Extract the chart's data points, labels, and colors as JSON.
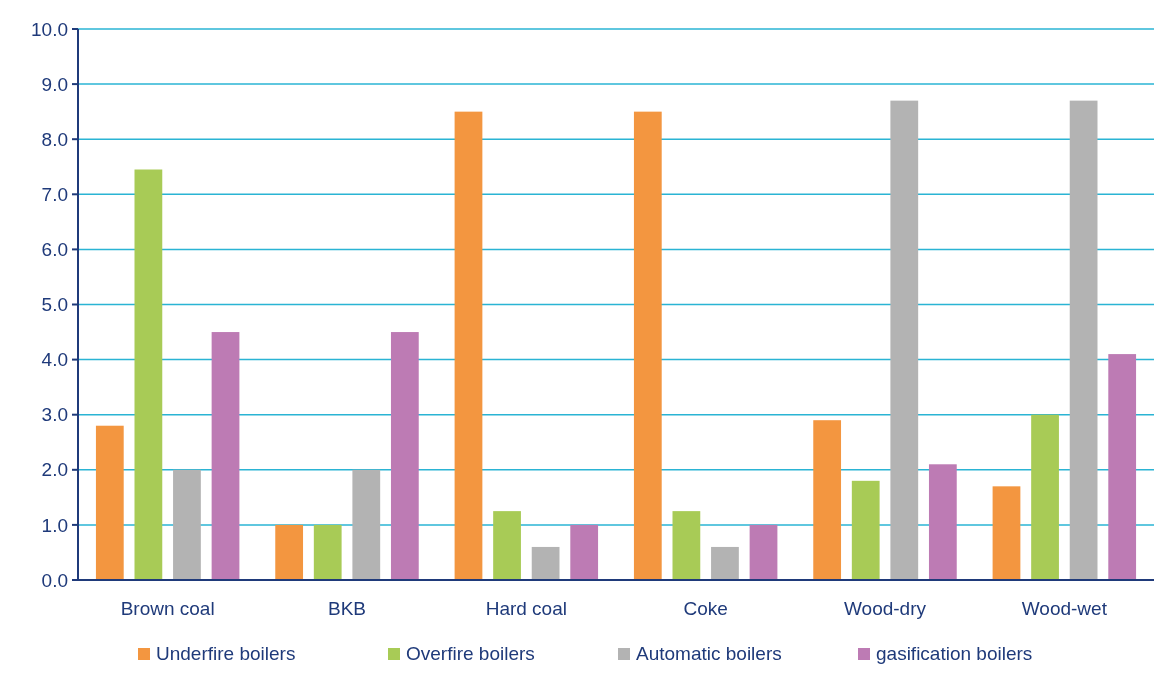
{
  "chart_data": {
    "type": "bar",
    "categories": [
      "Brown coal",
      "BKB",
      "Hard coal",
      "Coke",
      "Wood-dry",
      "Wood-wet"
    ],
    "series": [
      {
        "name": "Underfire boilers",
        "color": "#f39640",
        "values": [
          2.8,
          1.0,
          8.5,
          8.5,
          2.9,
          1.7
        ]
      },
      {
        "name": "Overfire boilers",
        "color": "#a8cb56",
        "values": [
          7.45,
          1.0,
          1.25,
          1.25,
          1.8,
          3.0
        ]
      },
      {
        "name": "Automatic boilers",
        "color": "#b3b3b3",
        "values": [
          2.0,
          2.0,
          0.6,
          0.6,
          8.7,
          8.7
        ]
      },
      {
        "name": "gasification boilers",
        "color": "#bd7bb4",
        "values": [
          4.5,
          4.5,
          1.0,
          1.0,
          2.1,
          4.1
        ]
      }
    ],
    "ylim": [
      0,
      10
    ],
    "yticks": [
      {
        "value": 0,
        "label": "0.0"
      },
      {
        "value": 1,
        "label": "1.0"
      },
      {
        "value": 2,
        "label": "2.0"
      },
      {
        "value": 3,
        "label": "3.0"
      },
      {
        "value": 4,
        "label": "4.0"
      },
      {
        "value": 5,
        "label": "5.0"
      },
      {
        "value": 6,
        "label": "6.0"
      },
      {
        "value": 7,
        "label": "7.0"
      },
      {
        "value": 8,
        "label": "8.0"
      },
      {
        "value": 9,
        "label": "9.0"
      },
      {
        "value": 10,
        "label": "10.0"
      }
    ],
    "grid": "y",
    "legend": "bottom"
  }
}
